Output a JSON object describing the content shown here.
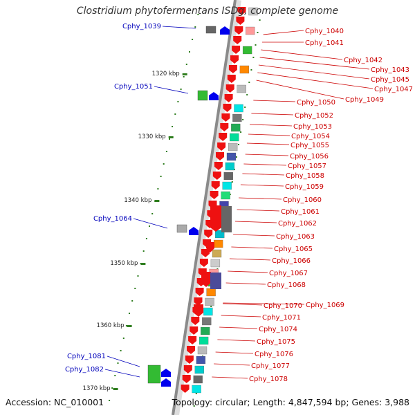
{
  "title": "Clostridium phytofermentans ISDg, complete genome",
  "footer": {
    "accession": "Accession: NC_010001",
    "summary": "Topology: circular; Length: 4,847,594 bp; Genes: 3,988"
  },
  "colors": {
    "backbone": "#8a8a8a",
    "tick": "#2e7d1e",
    "reverse_label": "#0000bb",
    "forward_label": "#cc0000",
    "forward_gene": "#ee1111"
  },
  "ticks": [
    "1320 kbp",
    "1330 kbp",
    "1340 kbp",
    "1350 kbp",
    "1360 kbp",
    "1370 kbp"
  ],
  "reverse_labels": [
    "Cphy_1039",
    "Cphy_1051",
    "Cphy_1064",
    "Cphy_1081",
    "Cphy_1082"
  ],
  "forward_labels": [
    "Cphy_1040",
    "Cphy_1041",
    "Cphy_1042",
    "Cphy_1043",
    "Cphy_1045",
    "Cphy_1047",
    "Cphy_1049",
    "Cphy_1050",
    "Cphy_1052",
    "Cphy_1053",
    "Cphy_1054",
    "Cphy_1055",
    "Cphy_1056",
    "Cphy_1057",
    "Cphy_1058",
    "Cphy_1059",
    "Cphy_1060",
    "Cphy_1061",
    "Cphy_1062",
    "Cphy_1063",
    "Cphy_1065",
    "Cphy_1066",
    "Cphy_1067",
    "Cphy_1068",
    "Cphy_1069",
    "Cphy_1070",
    "Cphy_1071",
    "Cphy_1074",
    "Cphy_1075",
    "Cphy_1076",
    "Cphy_1077",
    "Cphy_1078"
  ]
}
